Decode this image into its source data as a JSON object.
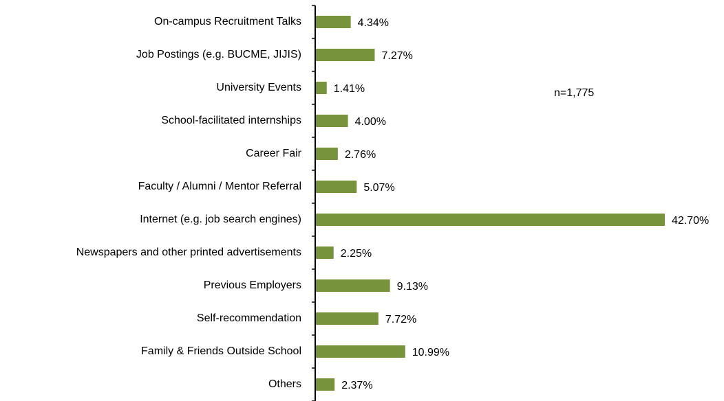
{
  "chart_data": {
    "type": "bar",
    "orientation": "horizontal",
    "categories": [
      "On-campus Recruitment Talks",
      "Job Postings (e.g. BUCME, JIJIS)",
      "University Events",
      "School-facilitated internships",
      "Career Fair",
      "Faculty / Alumni / Mentor Referral",
      "Internet (e.g. job search engines)",
      "Newspapers and other printed advertisements",
      "Previous Employers",
      "Self-recommendation",
      "Family & Friends Outside School",
      "Others"
    ],
    "values": [
      4.34,
      7.27,
      1.41,
      4.0,
      2.76,
      5.07,
      42.7,
      2.25,
      9.13,
      7.72,
      10.99,
      2.37
    ],
    "value_labels": [
      "4.34%",
      "7.27%",
      "1.41%",
      "4.00%",
      "2.76%",
      "5.07%",
      "42.70%",
      "2.25%",
      "9.13%",
      "7.72%",
      "10.99%",
      "2.37%"
    ],
    "color": "#77933c",
    "annotation": "n=1,775"
  }
}
